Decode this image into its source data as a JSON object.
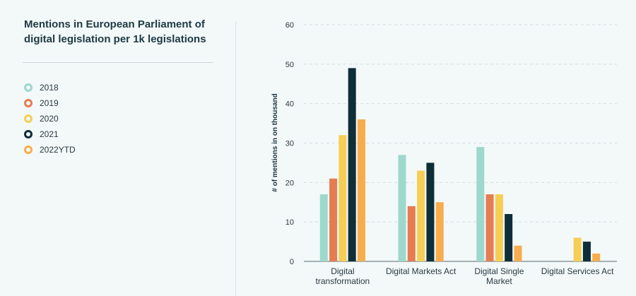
{
  "chart_data": {
    "type": "bar",
    "title": "Mentions in European Parliament of digital legislation per 1k legislations",
    "xlabel": "",
    "ylabel": "# of mentions in on thousand",
    "ylim": [
      0,
      60
    ],
    "yticks": [
      0,
      10,
      20,
      30,
      40,
      50,
      60
    ],
    "grid": true,
    "legend_position": "left",
    "categories": [
      [
        "Digital",
        "transformation"
      ],
      [
        "Digital Markets Act"
      ],
      [
        "Digital Single",
        "Market"
      ],
      [
        "Digital Services Act"
      ]
    ],
    "series": [
      {
        "name": "2018",
        "color": "#9dd8cc",
        "values": [
          17,
          27,
          29,
          null
        ]
      },
      {
        "name": "2019",
        "color": "#e57c52",
        "values": [
          21,
          14,
          17,
          null
        ]
      },
      {
        "name": "2020",
        "color": "#f6ce55",
        "values": [
          32,
          23,
          17,
          6
        ]
      },
      {
        "name": "2021",
        "color": "#0e2e38",
        "values": [
          49,
          25,
          12,
          5
        ]
      },
      {
        "name": "2022YTD",
        "color": "#f7ad4c",
        "values": [
          36,
          15,
          4,
          2
        ]
      }
    ]
  }
}
